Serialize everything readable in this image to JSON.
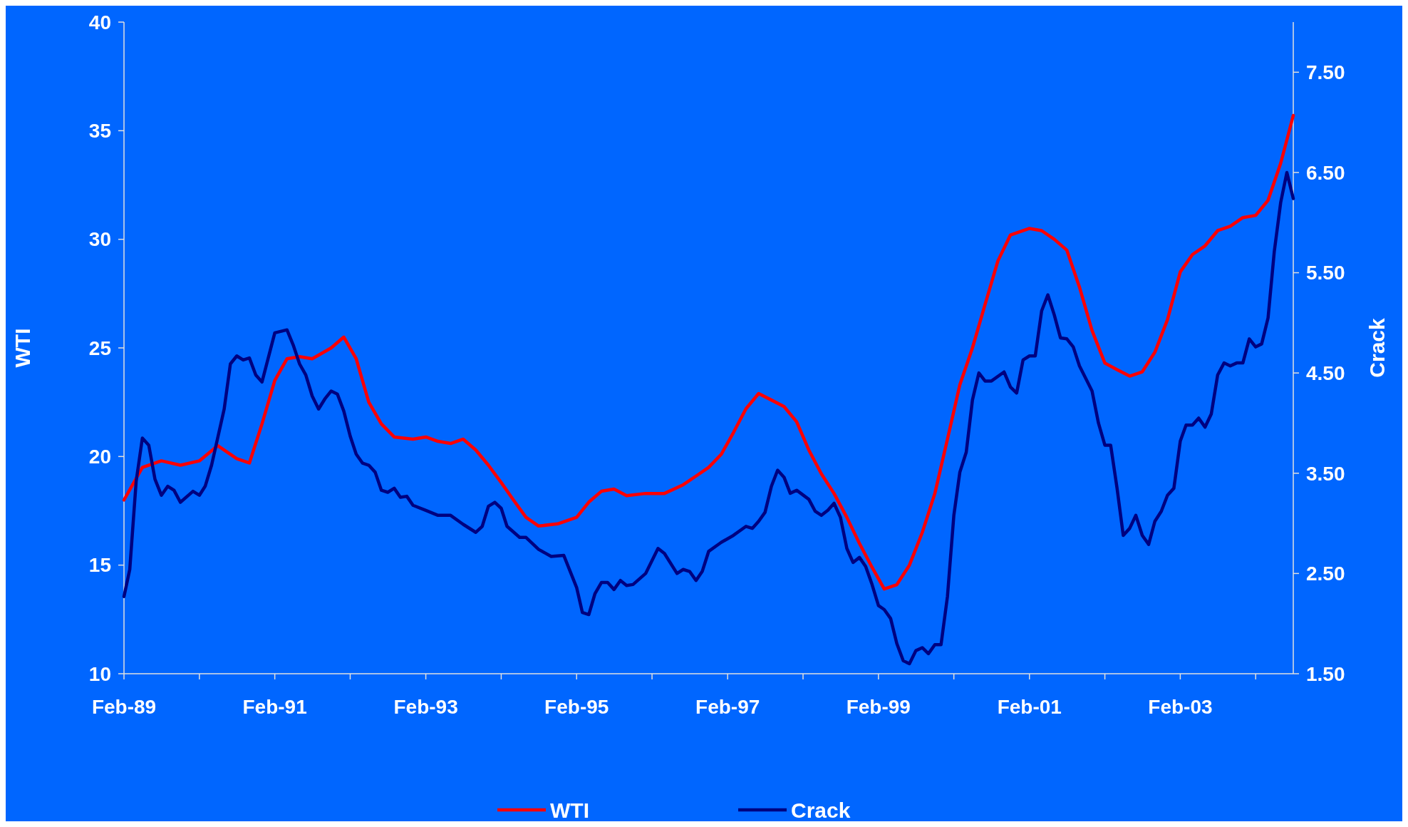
{
  "chart_data": {
    "type": "line",
    "ylabel": "WTI",
    "y2label": "Crack",
    "legend": "bottom",
    "grid": false,
    "line_style": "solid",
    "xlim": [
      "1989-02",
      "2004-08"
    ],
    "xticks": [
      {
        "value": "1989-02",
        "label": "Feb-89"
      },
      {
        "value": "1990-02",
        "label": null
      },
      {
        "value": "1991-02",
        "label": "Feb-91"
      },
      {
        "value": "1992-02",
        "label": null
      },
      {
        "value": "1993-02",
        "label": "Feb-93"
      },
      {
        "value": "1994-02",
        "label": null
      },
      {
        "value": "1995-02",
        "label": "Feb-95"
      },
      {
        "value": "1996-02",
        "label": null
      },
      {
        "value": "1997-02",
        "label": "Feb-97"
      },
      {
        "value": "1998-02",
        "label": null
      },
      {
        "value": "1999-02",
        "label": "Feb-99"
      },
      {
        "value": "2000-02",
        "label": null
      },
      {
        "value": "2001-02",
        "label": "Feb-01"
      },
      {
        "value": "2002-02",
        "label": null
      },
      {
        "value": "2003-02",
        "label": "Feb-03"
      },
      {
        "value": "2004-02",
        "label": null
      }
    ],
    "ylim": [
      10,
      40
    ],
    "yticks": [
      10,
      15,
      20,
      25,
      30,
      35,
      40
    ],
    "y2lim": [
      1.5,
      8.0
    ],
    "y2ticks": [
      {
        "value": 1.5,
        "label": "1.50"
      },
      {
        "value": 2.5,
        "label": "2.50"
      },
      {
        "value": 3.5,
        "label": "3.50"
      },
      {
        "value": 4.5,
        "label": "4.50"
      },
      {
        "value": 5.5,
        "label": "5.50"
      },
      {
        "value": 6.5,
        "label": "6.50"
      },
      {
        "value": 7.5,
        "label": "7.50"
      }
    ],
    "series": [
      {
        "name": "WTI",
        "color": "#ff0000",
        "x": [
          "1989-02",
          "1989-05",
          "1989-08",
          "1989-11",
          "1990-02",
          "1990-05",
          "1990-08",
          "1990-10",
          "1990-12",
          "1991-02",
          "1991-04",
          "1991-06",
          "1991-08",
          "1991-11",
          "1992-01",
          "1992-03",
          "1992-05",
          "1992-07",
          "1992-09",
          "1992-12",
          "1993-02",
          "1993-04",
          "1993-06",
          "1993-08",
          "1993-10",
          "1993-12",
          "1994-02",
          "1994-04",
          "1994-06",
          "1994-08",
          "1994-11",
          "1995-02",
          "1995-04",
          "1995-06",
          "1995-08",
          "1995-10",
          "1996-01",
          "1996-04",
          "1996-07",
          "1996-09",
          "1996-11",
          "1997-01",
          "1997-03",
          "1997-05",
          "1997-07",
          "1997-09",
          "1997-11",
          "1998-01",
          "1998-03",
          "1998-05",
          "1998-07",
          "1998-09",
          "1998-11",
          "1999-01",
          "1999-03",
          "1999-05",
          "1999-07",
          "1999-09",
          "1999-11",
          "2000-01",
          "2000-03",
          "2000-05",
          "2000-07",
          "2000-09",
          "2000-11",
          "2001-02",
          "2001-04",
          "2001-06",
          "2001-08",
          "2001-10",
          "2001-12",
          "2002-02",
          "2002-04",
          "2002-06",
          "2002-08",
          "2002-10",
          "2002-12",
          "2003-02",
          "2003-04",
          "2003-06",
          "2003-08",
          "2003-10",
          "2003-12",
          "2004-02",
          "2004-04",
          "2004-06",
          "2004-08"
        ],
        "values": [
          18.0,
          19.5,
          19.8,
          19.6,
          19.8,
          20.5,
          19.9,
          19.7,
          21.5,
          23.5,
          24.5,
          24.6,
          24.5,
          25.0,
          25.5,
          24.5,
          22.5,
          21.5,
          20.9,
          20.8,
          20.9,
          20.7,
          20.6,
          20.8,
          20.3,
          19.6,
          18.8,
          18.0,
          17.2,
          16.8,
          16.9,
          17.2,
          17.9,
          18.4,
          18.5,
          18.2,
          18.3,
          18.3,
          18.7,
          19.1,
          19.5,
          20.1,
          21.1,
          22.2,
          22.9,
          22.6,
          22.3,
          21.6,
          20.3,
          19.2,
          18.3,
          17.2,
          16.0,
          14.9,
          13.9,
          14.1,
          15.0,
          16.5,
          18.3,
          20.8,
          23.3,
          25.0,
          27.0,
          29.0,
          30.2,
          30.5,
          30.4,
          30.0,
          29.5,
          27.8,
          25.8,
          24.3,
          24.0,
          23.7,
          23.9,
          24.8,
          26.3,
          28.5,
          29.3,
          29.7,
          30.4,
          30.6,
          31.0,
          31.1,
          31.8,
          33.5,
          35.7
        ]
      },
      {
        "name": "Crack",
        "color": "#000080",
        "axis": "y2",
        "x": [
          "1989-02",
          "1989-03",
          "1989-04",
          "1989-05",
          "1989-06",
          "1989-07",
          "1989-08",
          "1989-09",
          "1989-10",
          "1989-11",
          "1990-01",
          "1990-02",
          "1990-03",
          "1990-04",
          "1990-06",
          "1990-07",
          "1990-08",
          "1990-09",
          "1990-10",
          "1990-11",
          "1990-12",
          "1991-02",
          "1991-04",
          "1991-05",
          "1991-06",
          "1991-07",
          "1991-08",
          "1991-09",
          "1991-10",
          "1991-11",
          "1991-12",
          "1992-01",
          "1992-02",
          "1992-03",
          "1992-04",
          "1992-05",
          "1992-06",
          "1992-07",
          "1992-08",
          "1992-09",
          "1992-10",
          "1992-11",
          "1992-12",
          "1993-02",
          "1993-04",
          "1993-06",
          "1993-08",
          "1993-10",
          "1993-11",
          "1993-12",
          "1994-01",
          "1994-02",
          "1994-03",
          "1994-05",
          "1994-06",
          "1994-08",
          "1994-10",
          "1994-12",
          "1995-01",
          "1995-02",
          "1995-03",
          "1995-04",
          "1995-05",
          "1995-06",
          "1995-07",
          "1995-08",
          "1995-09",
          "1995-10",
          "1995-11",
          "1996-01",
          "1996-03",
          "1996-04",
          "1996-06",
          "1996-07",
          "1996-08",
          "1996-09",
          "1996-10",
          "1996-11",
          "1997-01",
          "1997-03",
          "1997-05",
          "1997-06",
          "1997-07",
          "1997-08",
          "1997-09",
          "1997-10",
          "1997-11",
          "1997-12",
          "1998-01",
          "1998-03",
          "1998-04",
          "1998-05",
          "1998-06",
          "1998-07",
          "1998-08",
          "1998-09",
          "1998-10",
          "1998-11",
          "1998-12",
          "1999-01",
          "1999-02",
          "1999-03",
          "1999-04",
          "1999-05",
          "1999-06",
          "1999-07",
          "1999-08",
          "1999-09",
          "1999-10",
          "1999-11",
          "1999-12",
          "2000-01",
          "2000-02",
          "2000-03",
          "2000-04",
          "2000-05",
          "2000-06",
          "2000-07",
          "2000-08",
          "2000-10",
          "2000-11",
          "2000-12",
          "2001-01",
          "2001-02",
          "2001-03",
          "2001-04",
          "2001-05",
          "2001-06",
          "2001-07",
          "2001-08",
          "2001-09",
          "2001-10",
          "2001-12",
          "2002-01",
          "2002-02",
          "2002-03",
          "2002-04",
          "2002-05",
          "2002-06",
          "2002-07",
          "2002-08",
          "2002-09",
          "2002-10",
          "2002-11",
          "2002-12",
          "2003-01",
          "2003-02",
          "2003-03",
          "2003-04",
          "2003-05",
          "2003-06",
          "2003-07",
          "2003-08",
          "2003-09",
          "2003-10",
          "2003-11",
          "2003-12",
          "2004-01",
          "2004-02",
          "2004-03",
          "2004-04",
          "2004-05",
          "2004-06",
          "2004-07",
          "2004-08"
        ],
        "values": [
          2.27,
          2.54,
          3.42,
          3.85,
          3.78,
          3.44,
          3.28,
          3.37,
          3.33,
          3.21,
          3.32,
          3.28,
          3.37,
          3.58,
          4.14,
          4.59,
          4.67,
          4.63,
          4.65,
          4.48,
          4.41,
          4.9,
          4.93,
          4.78,
          4.59,
          4.48,
          4.27,
          4.14,
          4.24,
          4.32,
          4.29,
          4.12,
          3.87,
          3.69,
          3.6,
          3.58,
          3.51,
          3.33,
          3.31,
          3.35,
          3.26,
          3.27,
          3.18,
          3.13,
          3.08,
          3.08,
          2.99,
          2.91,
          2.97,
          3.17,
          3.21,
          3.15,
          2.97,
          2.86,
          2.86,
          2.74,
          2.67,
          2.68,
          2.52,
          2.36,
          2.11,
          2.09,
          2.3,
          2.41,
          2.41,
          2.34,
          2.43,
          2.38,
          2.39,
          2.5,
          2.75,
          2.7,
          2.5,
          2.54,
          2.52,
          2.43,
          2.52,
          2.72,
          2.81,
          2.88,
          2.97,
          2.95,
          3.02,
          3.11,
          3.37,
          3.53,
          3.46,
          3.3,
          3.33,
          3.24,
          3.12,
          3.08,
          3.13,
          3.2,
          3.06,
          2.75,
          2.61,
          2.66,
          2.57,
          2.39,
          2.18,
          2.14,
          2.05,
          1.8,
          1.63,
          1.6,
          1.73,
          1.76,
          1.7,
          1.79,
          1.79,
          2.27,
          3.08,
          3.51,
          3.71,
          4.23,
          4.5,
          4.42,
          4.42,
          4.51,
          4.36,
          4.3,
          4.63,
          4.67,
          4.67,
          5.12,
          5.28,
          5.08,
          4.85,
          4.84,
          4.76,
          4.57,
          4.32,
          4.0,
          3.78,
          3.78,
          3.35,
          2.88,
          2.95,
          3.08,
          2.88,
          2.79,
          3.02,
          3.12,
          3.28,
          3.35,
          3.82,
          3.98,
          3.98,
          4.05,
          3.96,
          4.09,
          4.48,
          4.6,
          4.57,
          4.6,
          4.6,
          4.84,
          4.76,
          4.79,
          5.05,
          5.71,
          6.2,
          6.5,
          6.24
        ]
      }
    ]
  }
}
